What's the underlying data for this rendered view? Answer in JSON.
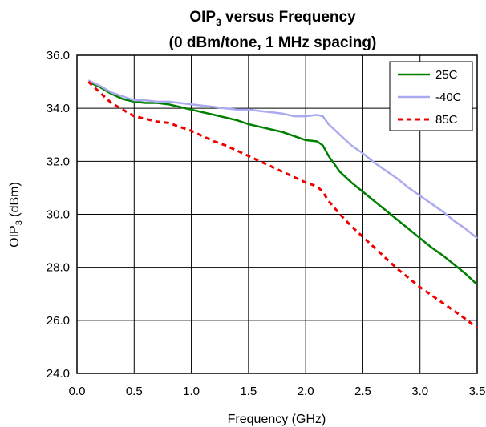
{
  "chart_data": {
    "type": "line",
    "title_line1_main": "OIP",
    "title_line1_sub": "3",
    "title_line1_rest": " versus Frequency",
    "title_line2": "(0 dBm/tone, 1 MHz spacing)",
    "xlabel": "Frequency (GHz)",
    "ylabel_main": "OIP",
    "ylabel_sub": "3",
    "ylabel_rest": " (dBm)",
    "xlim": [
      0.0,
      3.5
    ],
    "ylim": [
      24.0,
      36.0
    ],
    "x_ticks": [
      "0.0",
      "0.5",
      "1.0",
      "1.5",
      "2.0",
      "2.5",
      "3.0",
      "3.5"
    ],
    "y_ticks": [
      "24.0",
      "26.0",
      "28.0",
      "30.0",
      "32.0",
      "34.0",
      "36.0"
    ],
    "grid": true,
    "legend_position": "top-right",
    "series": [
      {
        "name": "25C",
        "color": "#008000",
        "dash": "solid",
        "x": [
          0.1,
          0.2,
          0.3,
          0.4,
          0.5,
          0.6,
          0.7,
          0.8,
          0.9,
          1.0,
          1.1,
          1.2,
          1.3,
          1.4,
          1.5,
          1.6,
          1.7,
          1.8,
          1.9,
          2.0,
          2.1,
          2.15,
          2.2,
          2.3,
          2.4,
          2.5,
          2.6,
          2.7,
          2.8,
          2.9,
          3.0,
          3.1,
          3.2,
          3.3,
          3.4,
          3.5
        ],
        "y": [
          35.0,
          34.8,
          34.55,
          34.35,
          34.25,
          34.2,
          34.2,
          34.15,
          34.05,
          33.95,
          33.85,
          33.75,
          33.65,
          33.55,
          33.4,
          33.3,
          33.2,
          33.1,
          32.95,
          32.8,
          32.75,
          32.6,
          32.2,
          31.6,
          31.2,
          30.85,
          30.5,
          30.15,
          29.8,
          29.45,
          29.1,
          28.75,
          28.45,
          28.1,
          27.75,
          27.35
        ]
      },
      {
        "name": "-40C",
        "color": "#aaaaee",
        "dash": "solid",
        "x": [
          0.1,
          0.2,
          0.3,
          0.4,
          0.5,
          0.6,
          0.7,
          0.8,
          0.9,
          1.0,
          1.1,
          1.2,
          1.3,
          1.4,
          1.5,
          1.6,
          1.7,
          1.8,
          1.9,
          2.0,
          2.1,
          2.15,
          2.2,
          2.3,
          2.4,
          2.5,
          2.6,
          2.7,
          2.8,
          2.9,
          3.0,
          3.1,
          3.2,
          3.3,
          3.4,
          3.5
        ],
        "y": [
          35.05,
          34.85,
          34.6,
          34.45,
          34.3,
          34.3,
          34.25,
          34.25,
          34.2,
          34.15,
          34.1,
          34.05,
          34.0,
          33.95,
          33.95,
          33.9,
          33.85,
          33.8,
          33.7,
          33.7,
          33.75,
          33.7,
          33.4,
          33.0,
          32.6,
          32.3,
          31.95,
          31.65,
          31.35,
          31.0,
          30.7,
          30.4,
          30.1,
          29.75,
          29.45,
          29.1
        ]
      },
      {
        "name": "85C",
        "color": "#ee0000",
        "dash": "dashed",
        "x": [
          0.1,
          0.2,
          0.3,
          0.4,
          0.5,
          0.6,
          0.7,
          0.8,
          0.9,
          1.0,
          1.1,
          1.2,
          1.3,
          1.4,
          1.5,
          1.6,
          1.7,
          1.8,
          1.9,
          2.0,
          2.1,
          2.15,
          2.2,
          2.3,
          2.4,
          2.5,
          2.6,
          2.7,
          2.8,
          2.9,
          3.0,
          3.1,
          3.2,
          3.3,
          3.4,
          3.5
        ],
        "y": [
          35.0,
          34.6,
          34.2,
          33.95,
          33.7,
          33.6,
          33.5,
          33.45,
          33.3,
          33.15,
          32.95,
          32.75,
          32.6,
          32.4,
          32.2,
          32.0,
          31.8,
          31.6,
          31.4,
          31.2,
          31.05,
          30.85,
          30.5,
          30.0,
          29.55,
          29.15,
          28.75,
          28.35,
          27.95,
          27.6,
          27.25,
          26.95,
          26.65,
          26.35,
          26.05,
          25.7
        ]
      }
    ]
  }
}
